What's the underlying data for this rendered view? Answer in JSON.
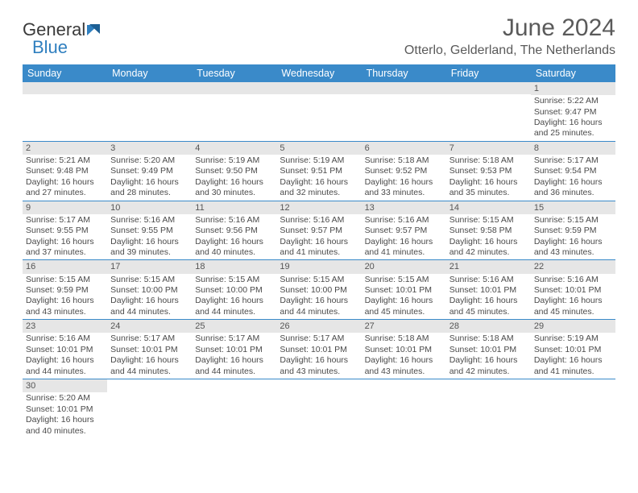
{
  "brand": {
    "part1": "General",
    "part2": "Blue"
  },
  "title": "June 2024",
  "location": "Otterlo, Gelderland, The Netherlands",
  "colors": {
    "header_bg": "#3a8ac9",
    "header_text": "#ffffff",
    "daynum_bg": "#e6e6e6",
    "text": "#4a4a4a",
    "rule": "#3a8ac9"
  },
  "weekdays": [
    "Sunday",
    "Monday",
    "Tuesday",
    "Wednesday",
    "Thursday",
    "Friday",
    "Saturday"
  ],
  "weeks": [
    [
      null,
      null,
      null,
      null,
      null,
      null,
      {
        "n": "1",
        "sr": "Sunrise: 5:22 AM",
        "ss": "Sunset: 9:47 PM",
        "d1": "Daylight: 16 hours",
        "d2": "and 25 minutes."
      }
    ],
    [
      {
        "n": "2",
        "sr": "Sunrise: 5:21 AM",
        "ss": "Sunset: 9:48 PM",
        "d1": "Daylight: 16 hours",
        "d2": "and 27 minutes."
      },
      {
        "n": "3",
        "sr": "Sunrise: 5:20 AM",
        "ss": "Sunset: 9:49 PM",
        "d1": "Daylight: 16 hours",
        "d2": "and 28 minutes."
      },
      {
        "n": "4",
        "sr": "Sunrise: 5:19 AM",
        "ss": "Sunset: 9:50 PM",
        "d1": "Daylight: 16 hours",
        "d2": "and 30 minutes."
      },
      {
        "n": "5",
        "sr": "Sunrise: 5:19 AM",
        "ss": "Sunset: 9:51 PM",
        "d1": "Daylight: 16 hours",
        "d2": "and 32 minutes."
      },
      {
        "n": "6",
        "sr": "Sunrise: 5:18 AM",
        "ss": "Sunset: 9:52 PM",
        "d1": "Daylight: 16 hours",
        "d2": "and 33 minutes."
      },
      {
        "n": "7",
        "sr": "Sunrise: 5:18 AM",
        "ss": "Sunset: 9:53 PM",
        "d1": "Daylight: 16 hours",
        "d2": "and 35 minutes."
      },
      {
        "n": "8",
        "sr": "Sunrise: 5:17 AM",
        "ss": "Sunset: 9:54 PM",
        "d1": "Daylight: 16 hours",
        "d2": "and 36 minutes."
      }
    ],
    [
      {
        "n": "9",
        "sr": "Sunrise: 5:17 AM",
        "ss": "Sunset: 9:55 PM",
        "d1": "Daylight: 16 hours",
        "d2": "and 37 minutes."
      },
      {
        "n": "10",
        "sr": "Sunrise: 5:16 AM",
        "ss": "Sunset: 9:55 PM",
        "d1": "Daylight: 16 hours",
        "d2": "and 39 minutes."
      },
      {
        "n": "11",
        "sr": "Sunrise: 5:16 AM",
        "ss": "Sunset: 9:56 PM",
        "d1": "Daylight: 16 hours",
        "d2": "and 40 minutes."
      },
      {
        "n": "12",
        "sr": "Sunrise: 5:16 AM",
        "ss": "Sunset: 9:57 PM",
        "d1": "Daylight: 16 hours",
        "d2": "and 41 minutes."
      },
      {
        "n": "13",
        "sr": "Sunrise: 5:16 AM",
        "ss": "Sunset: 9:57 PM",
        "d1": "Daylight: 16 hours",
        "d2": "and 41 minutes."
      },
      {
        "n": "14",
        "sr": "Sunrise: 5:15 AM",
        "ss": "Sunset: 9:58 PM",
        "d1": "Daylight: 16 hours",
        "d2": "and 42 minutes."
      },
      {
        "n": "15",
        "sr": "Sunrise: 5:15 AM",
        "ss": "Sunset: 9:59 PM",
        "d1": "Daylight: 16 hours",
        "d2": "and 43 minutes."
      }
    ],
    [
      {
        "n": "16",
        "sr": "Sunrise: 5:15 AM",
        "ss": "Sunset: 9:59 PM",
        "d1": "Daylight: 16 hours",
        "d2": "and 43 minutes."
      },
      {
        "n": "17",
        "sr": "Sunrise: 5:15 AM",
        "ss": "Sunset: 10:00 PM",
        "d1": "Daylight: 16 hours",
        "d2": "and 44 minutes."
      },
      {
        "n": "18",
        "sr": "Sunrise: 5:15 AM",
        "ss": "Sunset: 10:00 PM",
        "d1": "Daylight: 16 hours",
        "d2": "and 44 minutes."
      },
      {
        "n": "19",
        "sr": "Sunrise: 5:15 AM",
        "ss": "Sunset: 10:00 PM",
        "d1": "Daylight: 16 hours",
        "d2": "and 44 minutes."
      },
      {
        "n": "20",
        "sr": "Sunrise: 5:15 AM",
        "ss": "Sunset: 10:01 PM",
        "d1": "Daylight: 16 hours",
        "d2": "and 45 minutes."
      },
      {
        "n": "21",
        "sr": "Sunrise: 5:16 AM",
        "ss": "Sunset: 10:01 PM",
        "d1": "Daylight: 16 hours",
        "d2": "and 45 minutes."
      },
      {
        "n": "22",
        "sr": "Sunrise: 5:16 AM",
        "ss": "Sunset: 10:01 PM",
        "d1": "Daylight: 16 hours",
        "d2": "and 45 minutes."
      }
    ],
    [
      {
        "n": "23",
        "sr": "Sunrise: 5:16 AM",
        "ss": "Sunset: 10:01 PM",
        "d1": "Daylight: 16 hours",
        "d2": "and 44 minutes."
      },
      {
        "n": "24",
        "sr": "Sunrise: 5:17 AM",
        "ss": "Sunset: 10:01 PM",
        "d1": "Daylight: 16 hours",
        "d2": "and 44 minutes."
      },
      {
        "n": "25",
        "sr": "Sunrise: 5:17 AM",
        "ss": "Sunset: 10:01 PM",
        "d1": "Daylight: 16 hours",
        "d2": "and 44 minutes."
      },
      {
        "n": "26",
        "sr": "Sunrise: 5:17 AM",
        "ss": "Sunset: 10:01 PM",
        "d1": "Daylight: 16 hours",
        "d2": "and 43 minutes."
      },
      {
        "n": "27",
        "sr": "Sunrise: 5:18 AM",
        "ss": "Sunset: 10:01 PM",
        "d1": "Daylight: 16 hours",
        "d2": "and 43 minutes."
      },
      {
        "n": "28",
        "sr": "Sunrise: 5:18 AM",
        "ss": "Sunset: 10:01 PM",
        "d1": "Daylight: 16 hours",
        "d2": "and 42 minutes."
      },
      {
        "n": "29",
        "sr": "Sunrise: 5:19 AM",
        "ss": "Sunset: 10:01 PM",
        "d1": "Daylight: 16 hours",
        "d2": "and 41 minutes."
      }
    ],
    [
      {
        "n": "30",
        "sr": "Sunrise: 5:20 AM",
        "ss": "Sunset: 10:01 PM",
        "d1": "Daylight: 16 hours",
        "d2": "and 40 minutes."
      },
      null,
      null,
      null,
      null,
      null,
      null
    ]
  ]
}
